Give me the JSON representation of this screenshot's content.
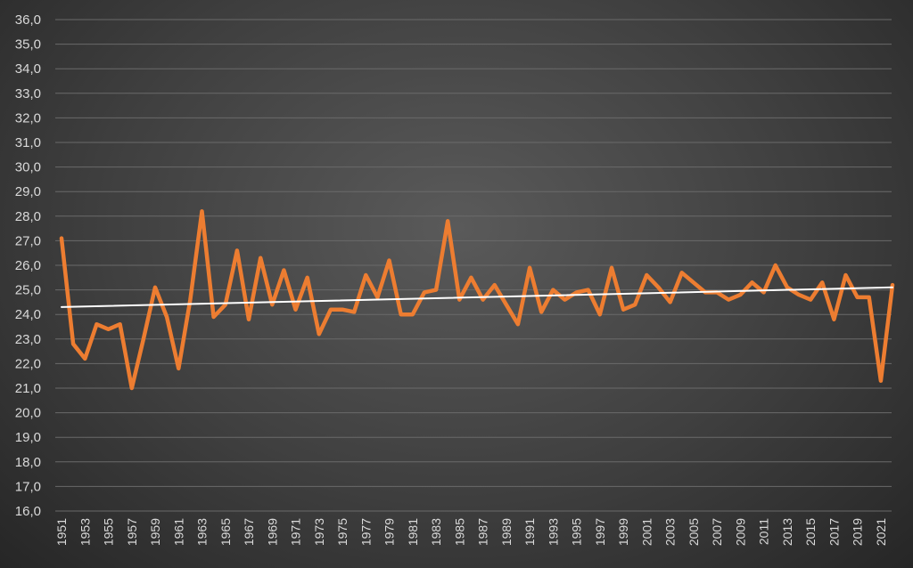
{
  "chart_data": {
    "type": "line",
    "title": "",
    "xlabel": "",
    "ylabel": "",
    "ylim": [
      16.0,
      36.0
    ],
    "y_tick_step": 1.0,
    "y_tick_labels": [
      "16,0",
      "17,0",
      "18,0",
      "19,0",
      "20,0",
      "21,0",
      "22,0",
      "23,0",
      "24,0",
      "25,0",
      "26,0",
      "27,0",
      "28,0",
      "29,0",
      "30,0",
      "31,0",
      "32,0",
      "33,0",
      "34,0",
      "35,0",
      "36,0"
    ],
    "x_tick_labels": [
      "1951",
      "1953",
      "1955",
      "1957",
      "1959",
      "1961",
      "1963",
      "1965",
      "1967",
      "1969",
      "1971",
      "1973",
      "1975",
      "1977",
      "1979",
      "1981",
      "1983",
      "1985",
      "1987",
      "1989",
      "1991",
      "1993",
      "1995",
      "1997",
      "1999",
      "2001",
      "2003",
      "2005",
      "2007",
      "2009",
      "2011",
      "2013",
      "2015",
      "2017",
      "2019",
      "2021"
    ],
    "grid": true,
    "legend": "none",
    "series": [
      {
        "color": "#ed7d31",
        "x": [
          1951,
          1952,
          1953,
          1954,
          1955,
          1956,
          1957,
          1958,
          1959,
          1960,
          1961,
          1962,
          1963,
          1964,
          1965,
          1966,
          1967,
          1968,
          1969,
          1970,
          1971,
          1972,
          1973,
          1974,
          1975,
          1976,
          1977,
          1978,
          1979,
          1980,
          1981,
          1982,
          1983,
          1984,
          1985,
          1986,
          1987,
          1988,
          1989,
          1990,
          1991,
          1992,
          1993,
          1994,
          1995,
          1996,
          1997,
          1998,
          1999,
          2000,
          2001,
          2002,
          2003,
          2004,
          2005,
          2006,
          2007,
          2008,
          2009,
          2010,
          2011,
          2012,
          2013,
          2014,
          2015,
          2016,
          2017,
          2018,
          2019,
          2020,
          2021,
          2022
        ],
        "values": [
          27.1,
          22.8,
          22.2,
          23.6,
          23.4,
          23.6,
          21.0,
          23.0,
          25.1,
          23.9,
          21.8,
          24.6,
          28.2,
          23.9,
          24.4,
          26.6,
          23.8,
          26.3,
          24.4,
          25.8,
          24.2,
          25.5,
          23.2,
          24.2,
          24.2,
          24.1,
          25.6,
          24.7,
          26.2,
          24.0,
          24.0,
          24.9,
          25.0,
          27.8,
          24.6,
          25.5,
          24.6,
          25.2,
          24.4,
          23.6,
          25.9,
          24.1,
          25.0,
          24.6,
          24.9,
          25.0,
          24.0,
          25.9,
          24.2,
          24.4,
          25.6,
          25.1,
          24.5,
          25.7,
          25.3,
          24.9,
          24.9,
          24.6,
          24.8,
          25.3,
          24.9,
          26.0,
          25.1,
          24.8,
          24.6,
          25.3,
          23.8,
          25.6,
          24.7,
          24.7,
          21.3,
          25.2
        ]
      },
      {
        "color": "#ffffff",
        "x": [
          1951,
          2022
        ],
        "values": [
          24.3,
          25.1
        ]
      }
    ]
  }
}
